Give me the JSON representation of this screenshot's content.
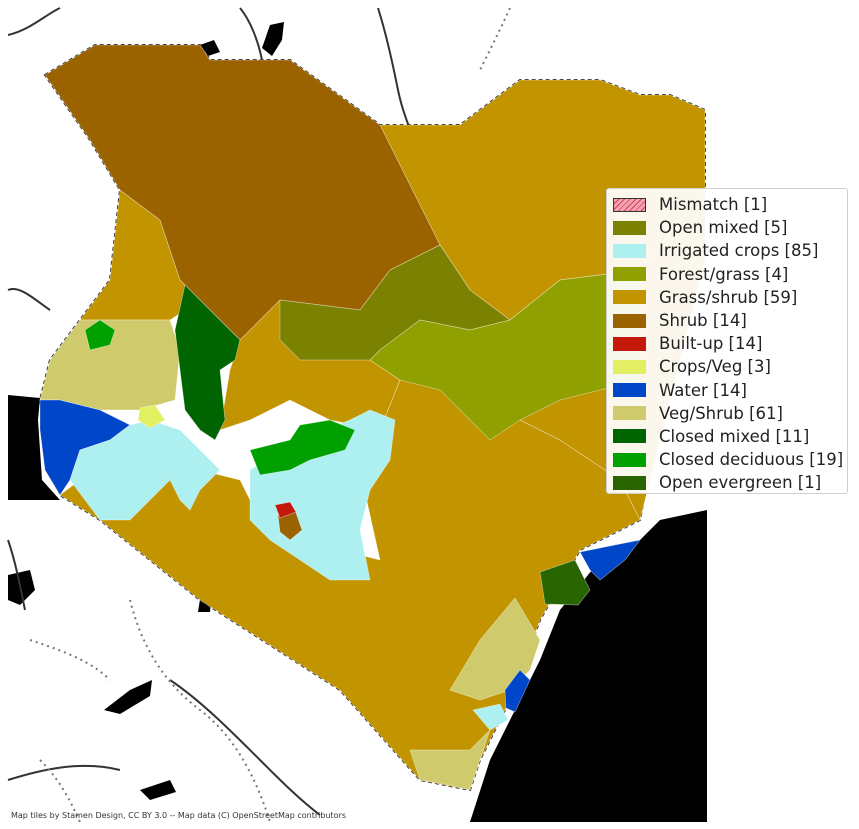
{
  "colors": {
    "mismatch": "#f6a3b0",
    "open_mixed": "#7b8100",
    "irrigated_crops": "#aef0f0",
    "forest_grass": "#8fa000",
    "grass_shrub": "#c19400",
    "shrub": "#9b6200",
    "built_up": "#c4180a",
    "crops_veg": "#e3ef62",
    "water": "#0046c8",
    "veg_shrub": "#cfcb6c",
    "closed_mixed": "#006400",
    "closed_deciduous": "#00a000",
    "open_evergreen": "#286400",
    "sea": "#000000"
  },
  "legend": {
    "items": [
      {
        "label": "Mismatch [1]",
        "color": "#f6a3b0",
        "hatched": true
      },
      {
        "label": "Open mixed [5]",
        "color": "#7b8100"
      },
      {
        "label": "Irrigated crops [85]",
        "color": "#aef0f0"
      },
      {
        "label": "Forest/grass [4]",
        "color": "#8fa000"
      },
      {
        "label": "Grass/shrub [59]",
        "color": "#c19400"
      },
      {
        "label": "Shrub [14]",
        "color": "#9b6200"
      },
      {
        "label": "Built-up [14]",
        "color": "#c4180a"
      },
      {
        "label": "Crops/Veg [3]",
        "color": "#e3ef62"
      },
      {
        "label": "Water [14]",
        "color": "#0046c8"
      },
      {
        "label": "Veg/Shrub [61]",
        "color": "#cfcb6c"
      },
      {
        "label": "Closed mixed [11]",
        "color": "#006400"
      },
      {
        "label": "Closed deciduous [19]",
        "color": "#00a000"
      },
      {
        "label": "Open evergreen [1]",
        "color": "#286400"
      }
    ]
  },
  "attribution": "Map tiles by Stamen Design, CC BY 3.0 -- Map data (C) OpenStreetMap contributors"
}
